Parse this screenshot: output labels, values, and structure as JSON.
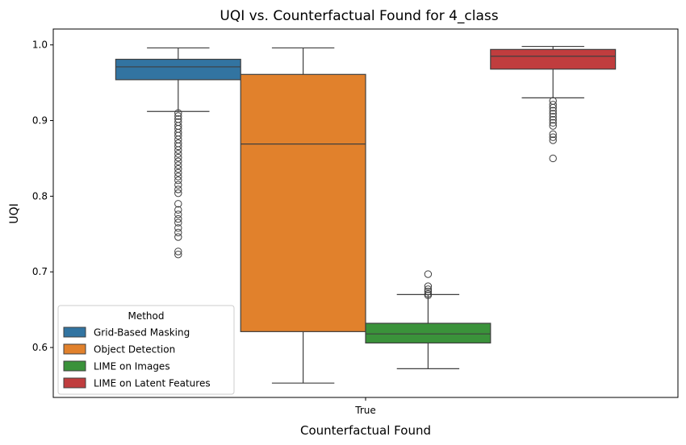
{
  "chart_data": {
    "type": "box",
    "title": "UQI vs. Counterfactual Found for 4_class",
    "xlabel": "Counterfactual Found",
    "ylabel": "UQI",
    "categories": [
      "True"
    ],
    "ylim": [
      0.534,
      1.021
    ],
    "yticks": [
      0.6,
      0.7,
      0.8,
      0.9,
      1.0
    ],
    "ytick_labels": [
      "0.6",
      "0.7",
      "0.8",
      "0.9",
      "1.0"
    ],
    "legend": {
      "title": "Method",
      "position": "lower-left"
    },
    "series": [
      {
        "name": "Grid-Based Masking",
        "color": "#3274a1",
        "whisker_low": 0.912,
        "q1": 0.954,
        "median": 0.971,
        "q3": 0.981,
        "whisker_high": 0.996,
        "outliers": [
          0.91,
          0.906,
          0.902,
          0.898,
          0.893,
          0.889,
          0.884,
          0.88,
          0.875,
          0.87,
          0.866,
          0.861,
          0.856,
          0.851,
          0.846,
          0.841,
          0.836,
          0.831,
          0.826,
          0.821,
          0.815,
          0.809,
          0.804,
          0.79,
          0.782,
          0.776,
          0.77,
          0.765,
          0.758,
          0.752,
          0.746,
          0.727,
          0.723
        ]
      },
      {
        "name": "Object Detection",
        "color": "#e1812c",
        "whisker_low": 0.553,
        "q1": 0.621,
        "median": 0.869,
        "q3": 0.961,
        "whisker_high": 0.996,
        "outliers": []
      },
      {
        "name": "LIME on Images",
        "color": "#3a923a",
        "whisker_low": 0.572,
        "q1": 0.606,
        "median": 0.618,
        "q3": 0.632,
        "whisker_high": 0.67,
        "outliers": [
          0.697,
          0.681,
          0.677,
          0.674,
          0.671,
          0.669
        ]
      },
      {
        "name": "LIME on Latent Features",
        "color": "#c03d3e",
        "whisker_low": 0.93,
        "q1": 0.968,
        "median": 0.985,
        "q3": 0.994,
        "whisker_high": 0.998,
        "outliers": [
          0.926,
          0.921,
          0.917,
          0.913,
          0.909,
          0.905,
          0.901,
          0.897,
          0.893,
          0.882,
          0.878,
          0.874,
          0.85
        ]
      }
    ]
  }
}
